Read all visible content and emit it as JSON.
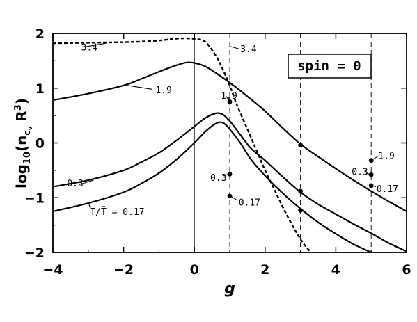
{
  "chart_data": {
    "type": "line",
    "xlabel": "g",
    "ylabel": "log10(ncvR3)",
    "xlim": [
      -4,
      6
    ],
    "ylim": [
      -2,
      2
    ],
    "xticks": [
      -4,
      -2,
      0,
      2,
      4,
      6
    ],
    "xtick_labels": [
      "−4",
      "−2",
      "0",
      "2",
      "4",
      "6"
    ],
    "yticks": [
      -2,
      -1,
      0,
      1,
      2
    ],
    "ytick_labels": [
      "−2",
      "−1",
      "0",
      "1",
      "2"
    ],
    "grid": false,
    "reference_lines": {
      "horizontal": [
        0
      ],
      "vertical_solid": [
        0
      ],
      "vertical_dashed": [
        1,
        3,
        5
      ]
    },
    "box_label": "spin = 0",
    "series": [
      {
        "name": "1.9",
        "style": "solid",
        "x": [
          -4,
          -3,
          -2,
          -1.5,
          -1,
          -0.5,
          -0.2,
          0,
          0.3,
          0.6,
          1,
          1.5,
          2,
          2.5,
          3,
          3.5,
          4,
          4.5,
          5,
          5.5,
          6
        ],
        "y": [
          0.78,
          0.9,
          1.05,
          1.17,
          1.3,
          1.42,
          1.47,
          1.46,
          1.4,
          1.28,
          1.1,
          0.85,
          0.58,
          0.27,
          -0.02,
          -0.25,
          -0.47,
          -0.68,
          -0.88,
          -1.07,
          -1.25
        ]
      },
      {
        "name": "0.3",
        "style": "solid",
        "x": [
          -4,
          -3,
          -2,
          -1.5,
          -1,
          -0.5,
          0,
          0.3,
          0.6,
          0.8,
          1,
          1.3,
          1.6,
          2,
          2.5,
          3,
          3.5,
          4,
          4.5,
          5,
          5.5,
          6
        ],
        "y": [
          -0.8,
          -0.68,
          -0.5,
          -0.35,
          -0.18,
          0.05,
          0.3,
          0.45,
          0.54,
          0.52,
          0.4,
          0.15,
          -0.1,
          -0.32,
          -0.62,
          -0.9,
          -1.12,
          -1.3,
          -1.48,
          -1.65,
          -1.83,
          -1.98
        ],
        "label_series_name": true
      },
      {
        "name": "T/T̃ = 0.17",
        "style": "solid",
        "x": [
          -4,
          -3,
          -2,
          -1.5,
          -1,
          -0.5,
          0,
          0.3,
          0.6,
          0.8,
          1,
          1.3,
          1.6,
          2,
          2.5,
          3,
          3.5,
          4,
          4.5,
          5
        ],
        "y": [
          -1.25,
          -1.1,
          -0.9,
          -0.74,
          -0.55,
          -0.3,
          0.0,
          0.2,
          0.35,
          0.37,
          0.25,
          0.0,
          -0.3,
          -0.6,
          -0.92,
          -1.2,
          -1.45,
          -1.66,
          -1.85,
          -2.0
        ]
      },
      {
        "name": "3.4",
        "style": "dashed",
        "x": [
          -4,
          -3,
          -2,
          -1.5,
          -1,
          -0.6,
          -0.3,
          0,
          0.3,
          0.6,
          0.8,
          1,
          1.2,
          1.5,
          1.8,
          2,
          2.3,
          2.6,
          2.9,
          3.1,
          3.3
        ],
        "y": [
          1.82,
          1.83,
          1.84,
          1.85,
          1.87,
          1.9,
          1.91,
          1.9,
          1.85,
          1.6,
          1.35,
          1.05,
          0.7,
          0.25,
          -0.2,
          -0.5,
          -0.9,
          -1.3,
          -1.65,
          -1.85,
          -2.0
        ]
      }
    ],
    "points": [
      {
        "x": 1,
        "y": 0.75
      },
      {
        "x": 1,
        "y": -0.57
      },
      {
        "x": 1,
        "y": -0.97
      },
      {
        "x": 3,
        "y": -0.04
      },
      {
        "x": 3,
        "y": -0.88
      },
      {
        "x": 3,
        "y": -1.23
      },
      {
        "x": 5,
        "y": -0.32
      },
      {
        "x": 5,
        "y": -0.58
      },
      {
        "x": 5,
        "y": -0.78
      }
    ],
    "annotations": [
      {
        "text": "3.4",
        "x": -3.2,
        "y": 1.75,
        "lx1": -3.05,
        "ly1": 1.76,
        "lx2": -2.5,
        "ly2": 1.82
      },
      {
        "text": "3.4",
        "x": 1.3,
        "y": 1.72,
        "lx1": 1.02,
        "ly1": 1.76,
        "lx2": 1.25,
        "ly2": 1.72
      },
      {
        "text": "1.9",
        "x": -1.1,
        "y": 0.97,
        "lx1": -1.2,
        "ly1": 0.98,
        "lx2": -1.9,
        "ly2": 1.05
      },
      {
        "text": "1.9",
        "x": 0.75,
        "y": 0.87,
        "lx1": 0.9,
        "ly1": 0.85,
        "lx2": 0.98,
        "ly2": 0.78
      },
      {
        "text": "0.3",
        "x": -3.6,
        "y": -0.73,
        "lx1": -3.25,
        "ly1": -0.76,
        "lx2": -2.85,
        "ly2": -0.68
      },
      {
        "text": "0.3",
        "x": 0.45,
        "y": -0.63,
        "lx1": 0.82,
        "ly1": -0.6,
        "lx2": 0.98,
        "ly2": -0.57
      },
      {
        "text": "0.17",
        "x": 1.25,
        "y": -1.08,
        "lx1": 1.02,
        "ly1": -0.97,
        "lx2": 1.22,
        "ly2": -1.05
      },
      {
        "text": "0.3",
        "x": 4.45,
        "y": -0.52,
        "lx1": 4.85,
        "ly1": -0.55,
        "lx2": 4.98,
        "ly2": -0.58
      },
      {
        "text": "1.9",
        "x": 5.2,
        "y": -0.23,
        "lx1": 5.02,
        "ly1": -0.31,
        "lx2": 5.18,
        "ly2": -0.25
      },
      {
        "text": "0.17",
        "x": 5.15,
        "y": -0.83,
        "lx1": 5.02,
        "ly1": -0.78,
        "lx2": 5.13,
        "ly2": -0.8
      },
      {
        "text": "T/T̃ = 0.17",
        "x": -2.95,
        "y": -1.25,
        "lx1": -2.95,
        "ly1": -1.18,
        "lx2": -3.0,
        "ly2": -1.08
      }
    ]
  }
}
